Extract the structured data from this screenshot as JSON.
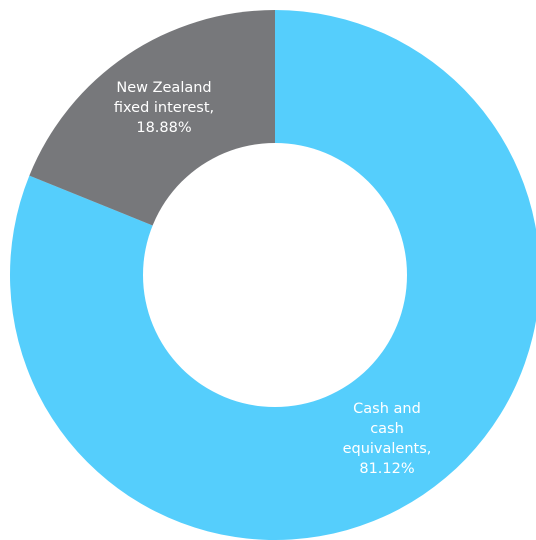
{
  "chart_data": {
    "type": "pie",
    "variant": "donut",
    "series": [
      {
        "label_lines": [
          "Cash and",
          "cash",
          "equivalents,",
          "81.12%"
        ],
        "category": "Cash and cash equivalents",
        "value": 81.12,
        "color": "#55CEFC"
      },
      {
        "label_lines": [
          "New Zealand",
          "fixed interest,",
          "18.88%"
        ],
        "category": "New Zealand fixed interest",
        "value": 18.88,
        "color": "#77787B"
      }
    ]
  }
}
